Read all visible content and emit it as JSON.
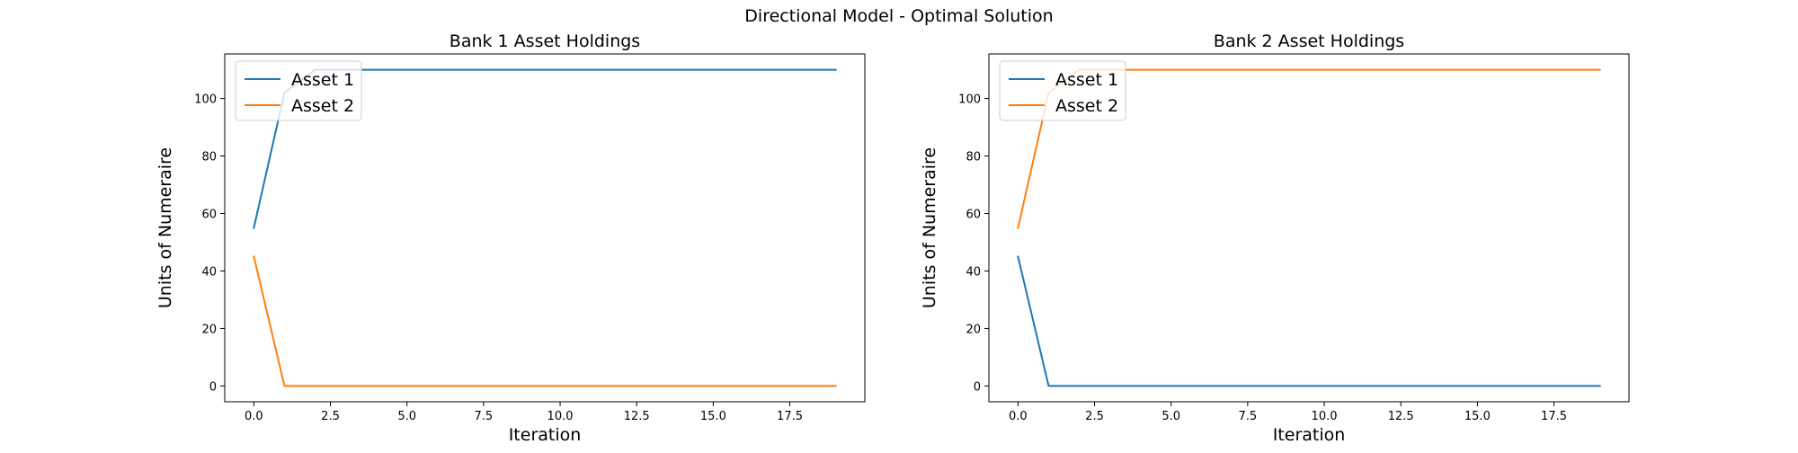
{
  "figure": {
    "suptitle": "Directional Model - Optimal Solution"
  },
  "chart_data": [
    {
      "type": "line",
      "title": "Bank 1 Asset Holdings",
      "xlabel": "Iteration",
      "ylabel": "Units of Numeraire",
      "xlim": [
        -0.95,
        19.95
      ],
      "ylim": [
        -5.5,
        115.5
      ],
      "xticks": [
        "0.0",
        "2.5",
        "5.0",
        "7.5",
        "10.0",
        "12.5",
        "15.0",
        "17.5"
      ],
      "xtick_values": [
        0,
        2.5,
        5,
        7.5,
        10,
        12.5,
        15,
        17.5
      ],
      "yticks": [
        "0",
        "20",
        "40",
        "60",
        "80",
        "100"
      ],
      "ytick_values": [
        0,
        20,
        40,
        60,
        80,
        100
      ],
      "legend_position": "upper-left",
      "grid": false,
      "series": [
        {
          "name": "Asset 1",
          "color": "#1f77b4",
          "x": [
            0,
            1,
            2,
            3,
            4,
            5,
            6,
            7,
            8,
            9,
            10,
            11,
            12,
            13,
            14,
            15,
            16,
            17,
            18,
            19
          ],
          "values": [
            55,
            102,
            110,
            110,
            110,
            110,
            110,
            110,
            110,
            110,
            110,
            110,
            110,
            110,
            110,
            110,
            110,
            110,
            110,
            110
          ]
        },
        {
          "name": "Asset 2",
          "color": "#ff7f0e",
          "x": [
            0,
            1,
            2,
            3,
            4,
            5,
            6,
            7,
            8,
            9,
            10,
            11,
            12,
            13,
            14,
            15,
            16,
            17,
            18,
            19
          ],
          "values": [
            45,
            0,
            0,
            0,
            0,
            0,
            0,
            0,
            0,
            0,
            0,
            0,
            0,
            0,
            0,
            0,
            0,
            0,
            0,
            0
          ]
        }
      ]
    },
    {
      "type": "line",
      "title": "Bank 2 Asset Holdings",
      "xlabel": "Iteration",
      "ylabel": "Units of Numeraire",
      "xlim": [
        -0.95,
        19.95
      ],
      "ylim": [
        -5.5,
        115.5
      ],
      "xticks": [
        "0.0",
        "2.5",
        "5.0",
        "7.5",
        "10.0",
        "12.5",
        "15.0",
        "17.5"
      ],
      "xtick_values": [
        0,
        2.5,
        5,
        7.5,
        10,
        12.5,
        15,
        17.5
      ],
      "yticks": [
        "0",
        "20",
        "40",
        "60",
        "80",
        "100"
      ],
      "ytick_values": [
        0,
        20,
        40,
        60,
        80,
        100
      ],
      "legend_position": "upper-left",
      "grid": false,
      "series": [
        {
          "name": "Asset 1",
          "color": "#1f77b4",
          "x": [
            0,
            1,
            2,
            3,
            4,
            5,
            6,
            7,
            8,
            9,
            10,
            11,
            12,
            13,
            14,
            15,
            16,
            17,
            18,
            19
          ],
          "values": [
            45,
            0,
            0,
            0,
            0,
            0,
            0,
            0,
            0,
            0,
            0,
            0,
            0,
            0,
            0,
            0,
            0,
            0,
            0,
            0
          ]
        },
        {
          "name": "Asset 2",
          "color": "#ff7f0e",
          "x": [
            0,
            1,
            2,
            3,
            4,
            5,
            6,
            7,
            8,
            9,
            10,
            11,
            12,
            13,
            14,
            15,
            16,
            17,
            18,
            19
          ],
          "values": [
            55,
            102,
            110,
            110,
            110,
            110,
            110,
            110,
            110,
            110,
            110,
            110,
            110,
            110,
            110,
            110,
            110,
            110,
            110,
            110
          ]
        }
      ]
    }
  ]
}
